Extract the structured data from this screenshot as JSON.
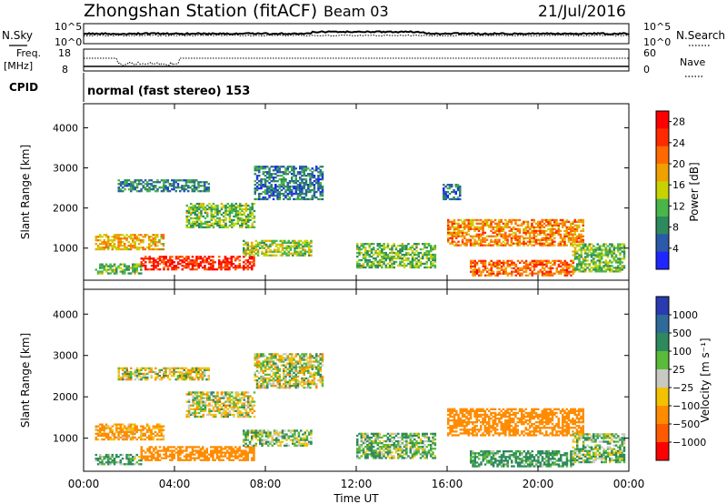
{
  "header": {
    "title": "Zhongshan Station (fitACF)",
    "beam": "Beam 03",
    "date": "21/Jul/2016"
  },
  "noise_panel": {
    "left_label": "N.Sky",
    "right_label": "N.Search",
    "y_ticks_left": [
      "10^5",
      "10^0"
    ],
    "y_ticks_right": [
      "10^5",
      "10^0"
    ]
  },
  "freq_panel": {
    "left_label_1": "Freq.",
    "left_label_2": "[MHz]",
    "right_label": "Nave",
    "y_ticks_left": [
      "18",
      "8"
    ],
    "y_ticks_right": [
      "60",
      "0"
    ]
  },
  "cpid": {
    "label": "CPID",
    "value": "normal (fast stereo) 153"
  },
  "x_axis": {
    "title": "Time UT",
    "ticks": [
      "00:00",
      "04:00",
      "08:00",
      "12:00",
      "16:00",
      "20:00",
      "00:00"
    ],
    "range_hours": [
      0,
      24
    ]
  },
  "colors": {
    "power_scale": [
      "#1f26ff",
      "#2a5aa8",
      "#2e8a5c",
      "#49b649",
      "#c8d200",
      "#f0a000",
      "#ff6a00",
      "#ff2a00",
      "#ff0000"
    ],
    "velocity_scale": [
      "#2a3ab0",
      "#2e6a9a",
      "#2e8a5c",
      "#5aba3a",
      "#c9c9c4",
      "#f2c200",
      "#ff8c00",
      "#ff5a00",
      "#ff0000"
    ]
  },
  "chart_data": [
    {
      "type": "heatmap",
      "name": "power",
      "ylabel": "Slant Range [km]",
      "yticks": [
        "1000",
        "2000",
        "3000",
        "4000"
      ],
      "ylim": [
        200,
        4600
      ],
      "colorbar_label": "Power [dB]",
      "colorbar_ticks": [
        "4",
        "8",
        "12",
        "16",
        "20",
        "24",
        "28"
      ],
      "clim": [
        0,
        30
      ],
      "regions": [
        {
          "t0": 0.5,
          "t1": 3.5,
          "r0": 950,
          "r1": 1350,
          "level": 18
        },
        {
          "t0": 2.5,
          "t1": 7.5,
          "r0": 450,
          "r1": 800,
          "level": 26
        },
        {
          "t0": 0.5,
          "t1": 2.5,
          "r0": 350,
          "r1": 600,
          "level": 12
        },
        {
          "t0": 1.5,
          "t1": 5.5,
          "r0": 2400,
          "r1": 2700,
          "level": 8
        },
        {
          "t0": 4.5,
          "t1": 7.5,
          "r0": 1500,
          "r1": 2100,
          "level": 12
        },
        {
          "t0": 7.5,
          "t1": 10.5,
          "r0": 2200,
          "r1": 3050,
          "level": 7
        },
        {
          "t0": 7.0,
          "t1": 10.0,
          "r0": 800,
          "r1": 1200,
          "level": 14
        },
        {
          "t0": 12.0,
          "t1": 15.5,
          "r0": 500,
          "r1": 1100,
          "level": 12
        },
        {
          "t0": 15.8,
          "t1": 16.6,
          "r0": 2200,
          "r1": 2600,
          "level": 6
        },
        {
          "t0": 16.0,
          "t1": 22.0,
          "r0": 1050,
          "r1": 1700,
          "level": 20
        },
        {
          "t0": 17.0,
          "t1": 21.5,
          "r0": 300,
          "r1": 700,
          "level": 22
        },
        {
          "t0": 21.5,
          "t1": 23.8,
          "r0": 400,
          "r1": 1100,
          "level": 12
        }
      ]
    },
    {
      "type": "heatmap",
      "name": "velocity",
      "ylabel": "Slant Range [km]",
      "yticks": [
        "1000",
        "2000",
        "3000",
        "4000"
      ],
      "ylim": [
        200,
        4600
      ],
      "colorbar_label": "Velocity [m s⁻¹]",
      "colorbar_ticks": [
        "1000",
        "500",
        "100",
        "25",
        "−25",
        "−100",
        "−500",
        "−1000"
      ],
      "clim": [
        -1000,
        1000
      ],
      "regions": [
        {
          "t0": 1.5,
          "t1": 5.5,
          "r0": 2400,
          "r1": 2700,
          "level": 0
        },
        {
          "t0": 4.5,
          "t1": 7.5,
          "r0": 1500,
          "r1": 2100,
          "level": 0
        },
        {
          "t0": 7.5,
          "t1": 10.5,
          "r0": 2200,
          "r1": 3050,
          "level": 0
        },
        {
          "t0": 0.5,
          "t1": 3.5,
          "r0": 950,
          "r1": 1350,
          "level": -150
        },
        {
          "t0": 2.5,
          "t1": 7.5,
          "r0": 450,
          "r1": 800,
          "level": -300
        },
        {
          "t0": 0.5,
          "t1": 2.5,
          "r0": 350,
          "r1": 600,
          "level": 120
        },
        {
          "t0": 7.0,
          "t1": 10.0,
          "r0": 800,
          "r1": 1200,
          "level": 60
        },
        {
          "t0": 12.0,
          "t1": 15.5,
          "r0": 500,
          "r1": 1100,
          "level": 80
        },
        {
          "t0": 16.0,
          "t1": 22.0,
          "r0": 1050,
          "r1": 1700,
          "level": -300
        },
        {
          "t0": 17.0,
          "t1": 21.5,
          "r0": 300,
          "r1": 700,
          "level": 150
        },
        {
          "t0": 21.5,
          "t1": 23.8,
          "r0": 400,
          "r1": 1100,
          "level": 60
        }
      ]
    }
  ]
}
